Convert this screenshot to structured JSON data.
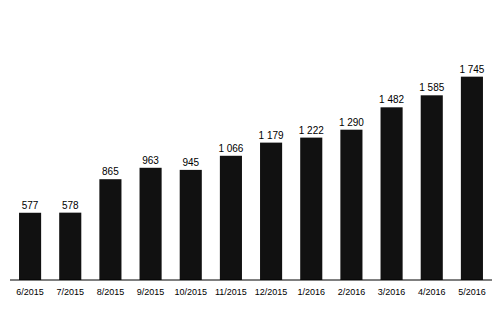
{
  "chart_data": {
    "type": "bar",
    "categories": [
      "6/2015",
      "7/2015",
      "8/2015",
      "9/2015",
      "10/2015",
      "11/2015",
      "12/2015",
      "1/2016",
      "2/2016",
      "3/2016",
      "4/2016",
      "5/2016"
    ],
    "values": [
      577,
      578,
      865,
      963,
      945,
      1066,
      1179,
      1222,
      1290,
      1482,
      1585,
      1745
    ],
    "value_labels": [
      "577",
      "578",
      "865",
      "963",
      "945",
      "1 066",
      "1 179",
      "1 222",
      "1 290",
      "1 482",
      "1 585",
      "1 745"
    ],
    "color": "#111111",
    "ylim": [
      0,
      2300
    ],
    "grid": false,
    "data_labels": true,
    "tick_labels": "x"
  }
}
